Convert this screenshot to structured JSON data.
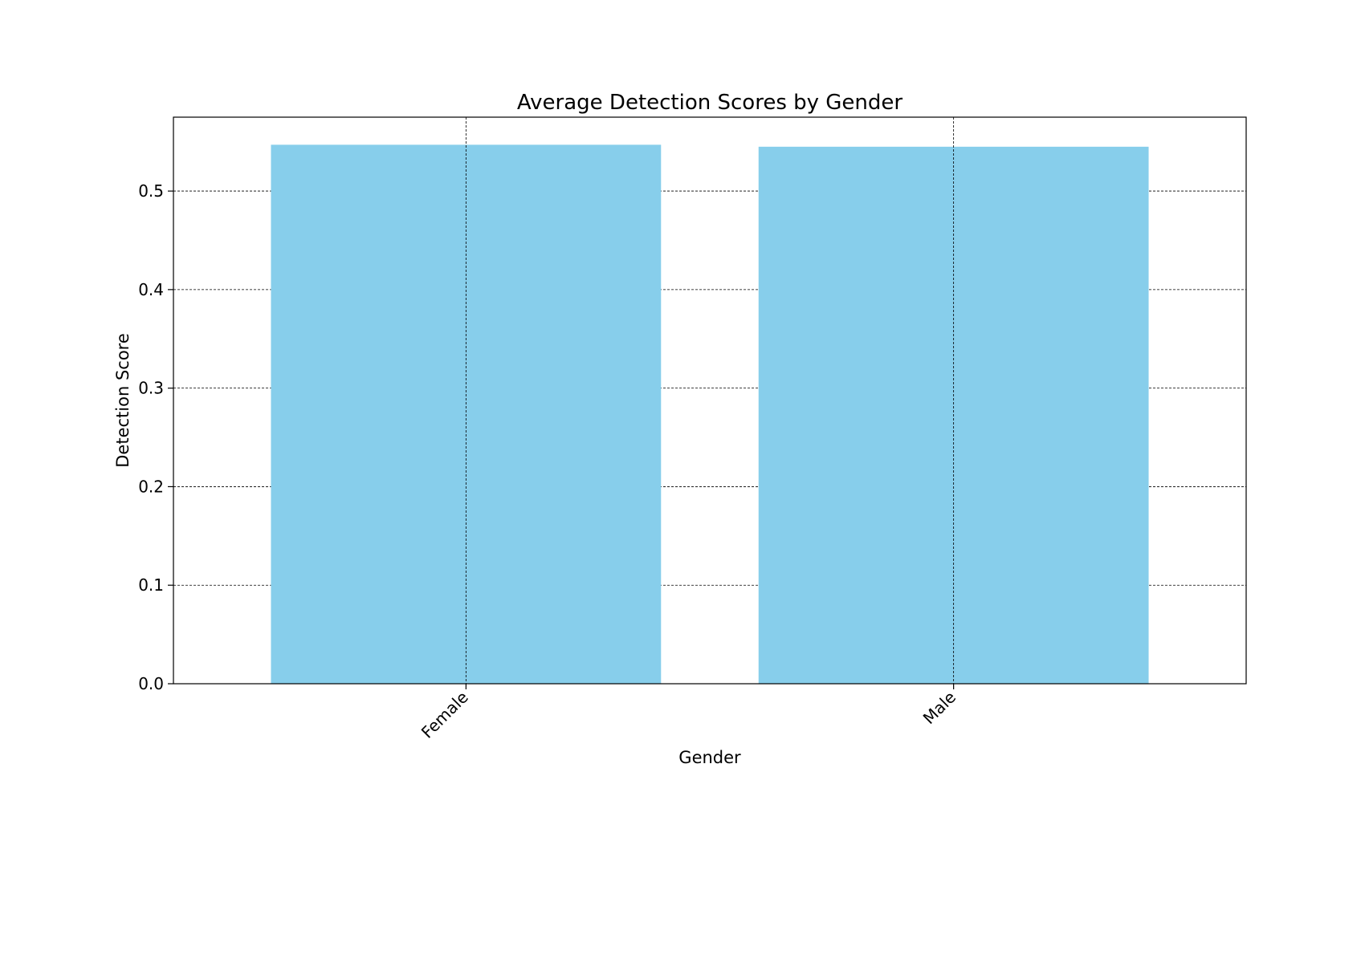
{
  "chart_data": {
    "type": "bar",
    "title": "Average Detection Scores by Gender",
    "xlabel": "Gender",
    "ylabel": "Detection Score",
    "categories": [
      "Female",
      "Male"
    ],
    "values": [
      0.547,
      0.545
    ],
    "ylim": [
      0,
      0.575
    ],
    "yticks": [
      0.0,
      0.1,
      0.2,
      0.3,
      0.4,
      0.5
    ],
    "ytick_labels": [
      "0.0",
      "0.1",
      "0.2",
      "0.3",
      "0.4",
      "0.5"
    ],
    "grid": true,
    "bar_color": "#87CEEB",
    "grid_color": "#000000"
  }
}
